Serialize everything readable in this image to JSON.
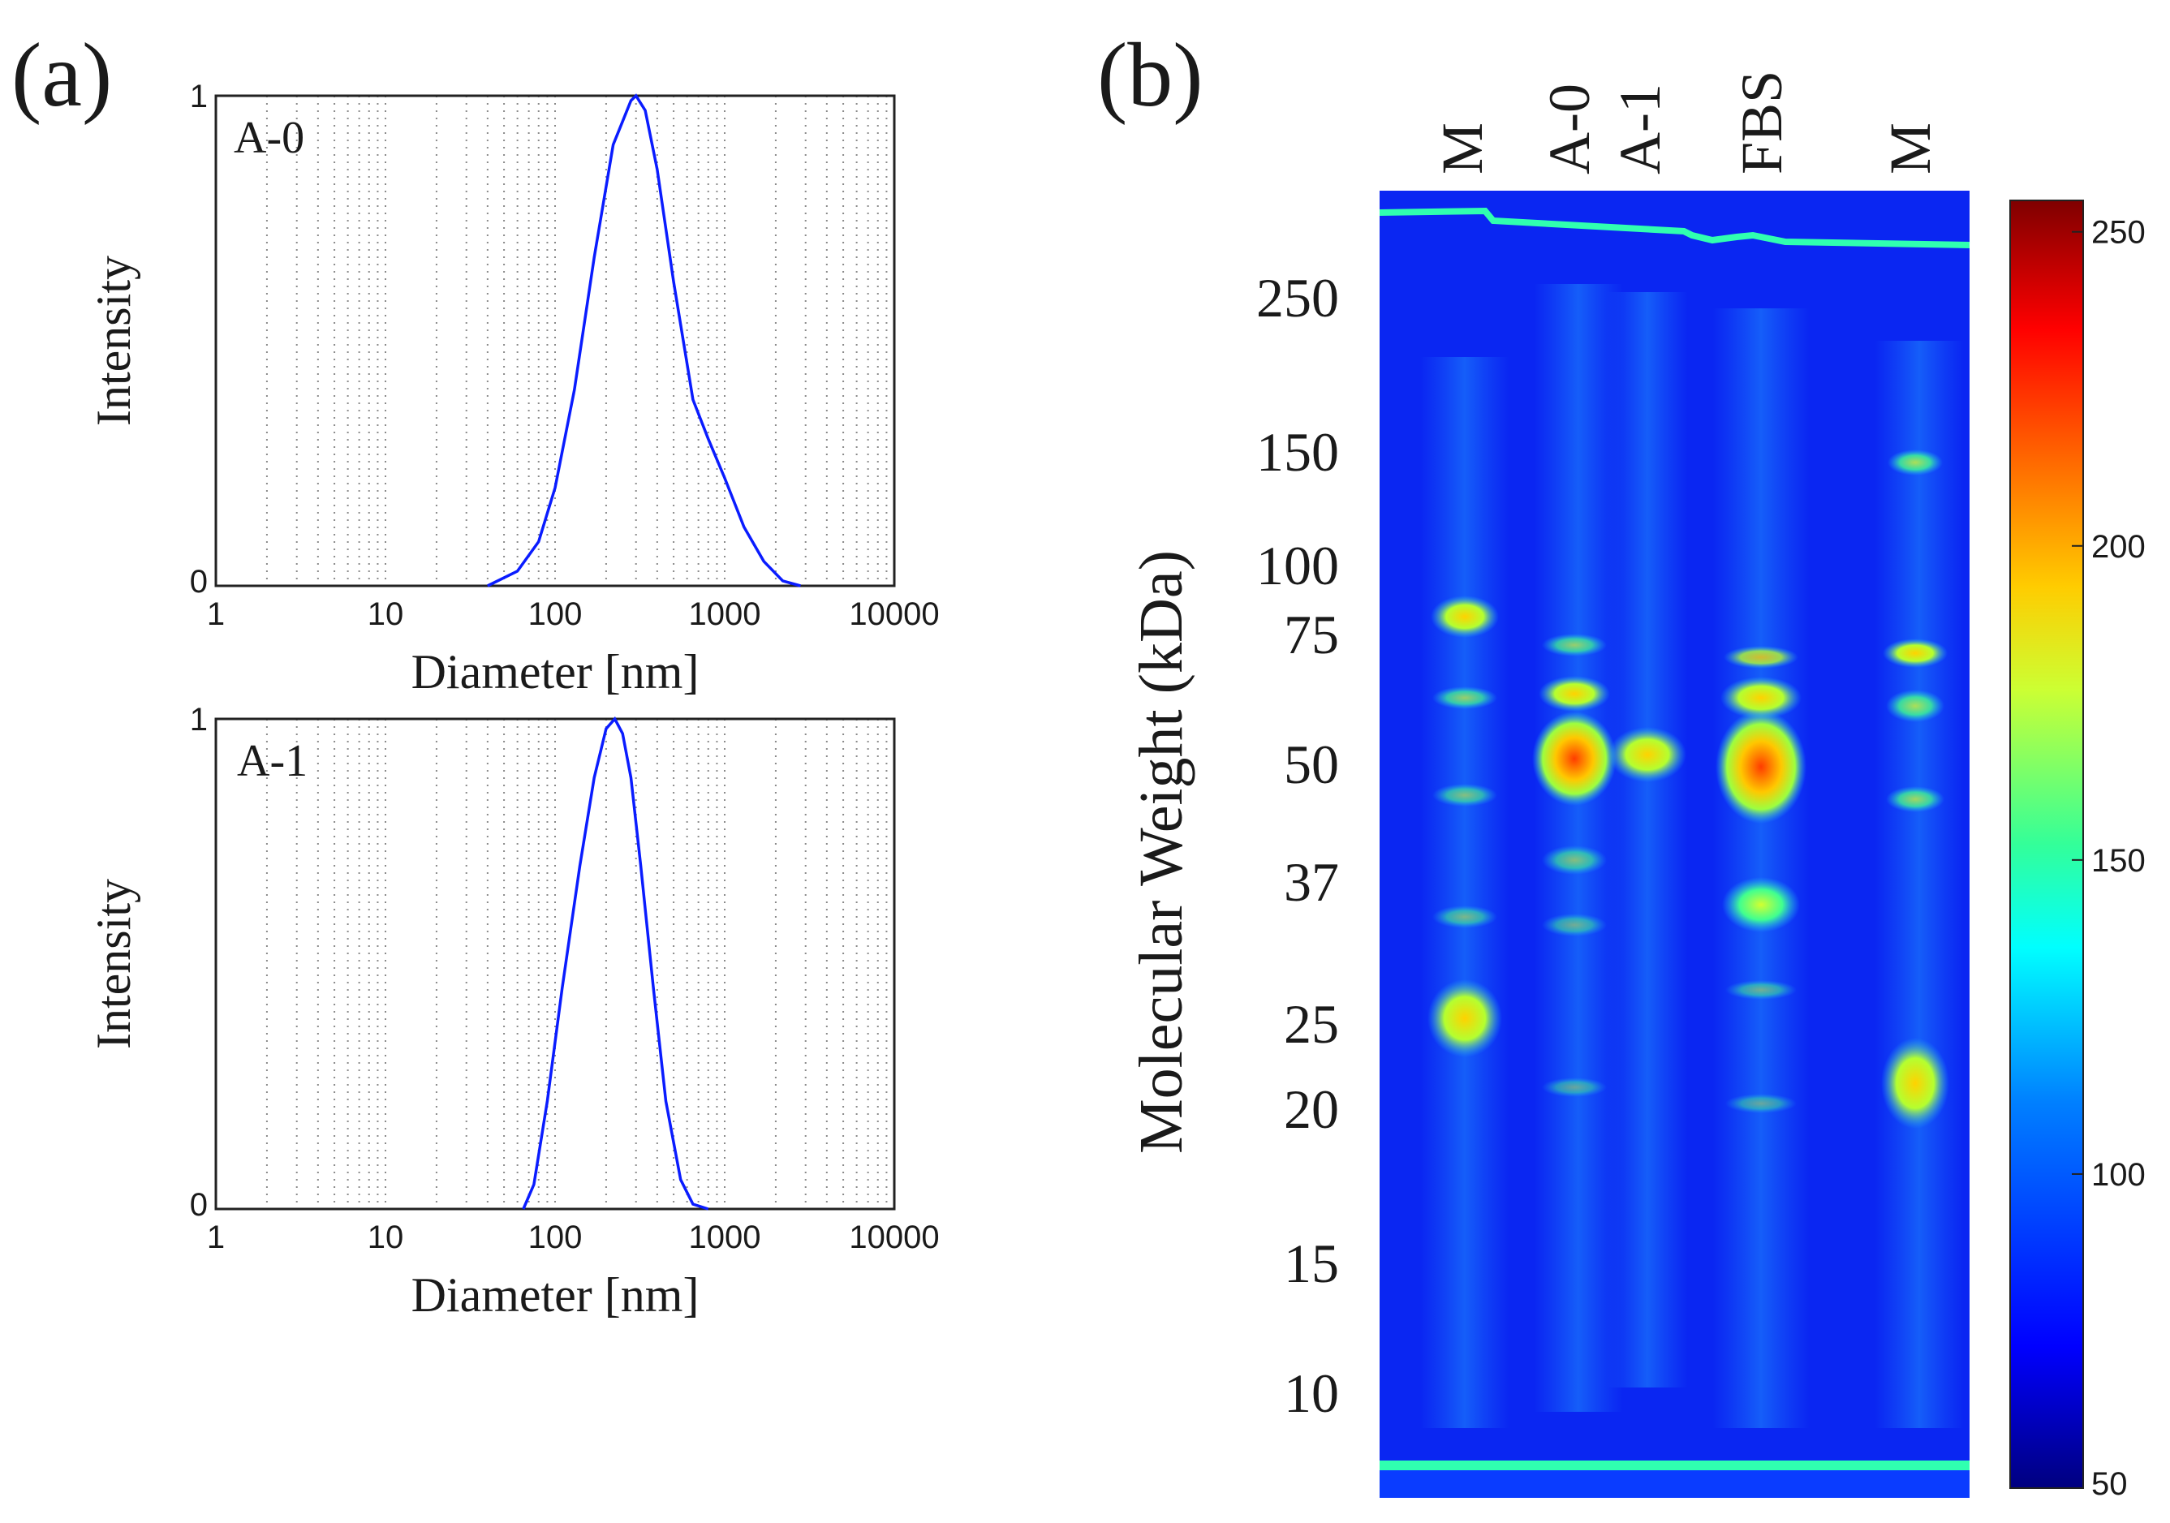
{
  "panel_a": {
    "label": "(a)",
    "plots": [
      {
        "sample": "A-0",
        "ylabel": "Intensity",
        "xlabel": "Diameter [nm]"
      },
      {
        "sample": "A-1",
        "ylabel": "Intensity",
        "xlabel": "Diameter [nm]"
      }
    ]
  },
  "panel_b": {
    "label": "(b)",
    "ylabel": "Molecular Weight (kDa)",
    "mw_markers": [
      "250",
      "150",
      "100",
      "75",
      "50",
      "37",
      "25",
      "20",
      "15",
      "10"
    ],
    "lanes": [
      "M",
      "A-0",
      "A-1",
      "FBS",
      "M"
    ]
  },
  "colorbar": {
    "ticks": [
      "250",
      "200",
      "150",
      "100",
      "50"
    ],
    "range": [
      50,
      255
    ],
    "colors": [
      "#00007f",
      "#0000ff",
      "#0080ff",
      "#00ffff",
      "#80ff80",
      "#ffff00",
      "#ff8000",
      "#ff0000",
      "#7f0000"
    ]
  },
  "chart_data": [
    {
      "type": "line",
      "title": "A-0",
      "xlabel": "Diameter [nm]",
      "ylabel": "Intensity",
      "xscale": "log",
      "xlim": [
        1,
        10000
      ],
      "ylim": [
        0,
        1
      ],
      "x_ticks": [
        "1",
        "10",
        "100",
        "1000",
        "10000"
      ],
      "y_ticks": [
        "0",
        "1"
      ],
      "series": [
        {
          "name": "A-0",
          "color": "#0a1cff",
          "x": [
            40,
            60,
            80,
            100,
            130,
            170,
            220,
            280,
            300,
            340,
            400,
            500,
            650,
            800,
            1000,
            1300,
            1700,
            2200,
            2800
          ],
          "y": [
            0.0,
            0.03,
            0.09,
            0.2,
            0.4,
            0.67,
            0.9,
            0.99,
            1.0,
            0.97,
            0.85,
            0.62,
            0.38,
            0.3,
            0.22,
            0.12,
            0.05,
            0.01,
            0.0
          ]
        }
      ]
    },
    {
      "type": "line",
      "title": "A-1",
      "xlabel": "Diameter [nm]",
      "ylabel": "Intensity",
      "xscale": "log",
      "xlim": [
        1,
        10000
      ],
      "ylim": [
        0,
        1
      ],
      "x_ticks": [
        "1",
        "10",
        "100",
        "1000",
        "10000"
      ],
      "y_ticks": [
        "0",
        "1"
      ],
      "series": [
        {
          "name": "A-1",
          "color": "#0a1cff",
          "x": [
            65,
            75,
            90,
            110,
            140,
            170,
            200,
            225,
            250,
            280,
            320,
            380,
            450,
            550,
            650,
            800
          ],
          "y": [
            0.0,
            0.05,
            0.22,
            0.45,
            0.7,
            0.88,
            0.98,
            1.0,
            0.97,
            0.88,
            0.7,
            0.45,
            0.22,
            0.06,
            0.01,
            0.0
          ]
        }
      ]
    }
  ]
}
